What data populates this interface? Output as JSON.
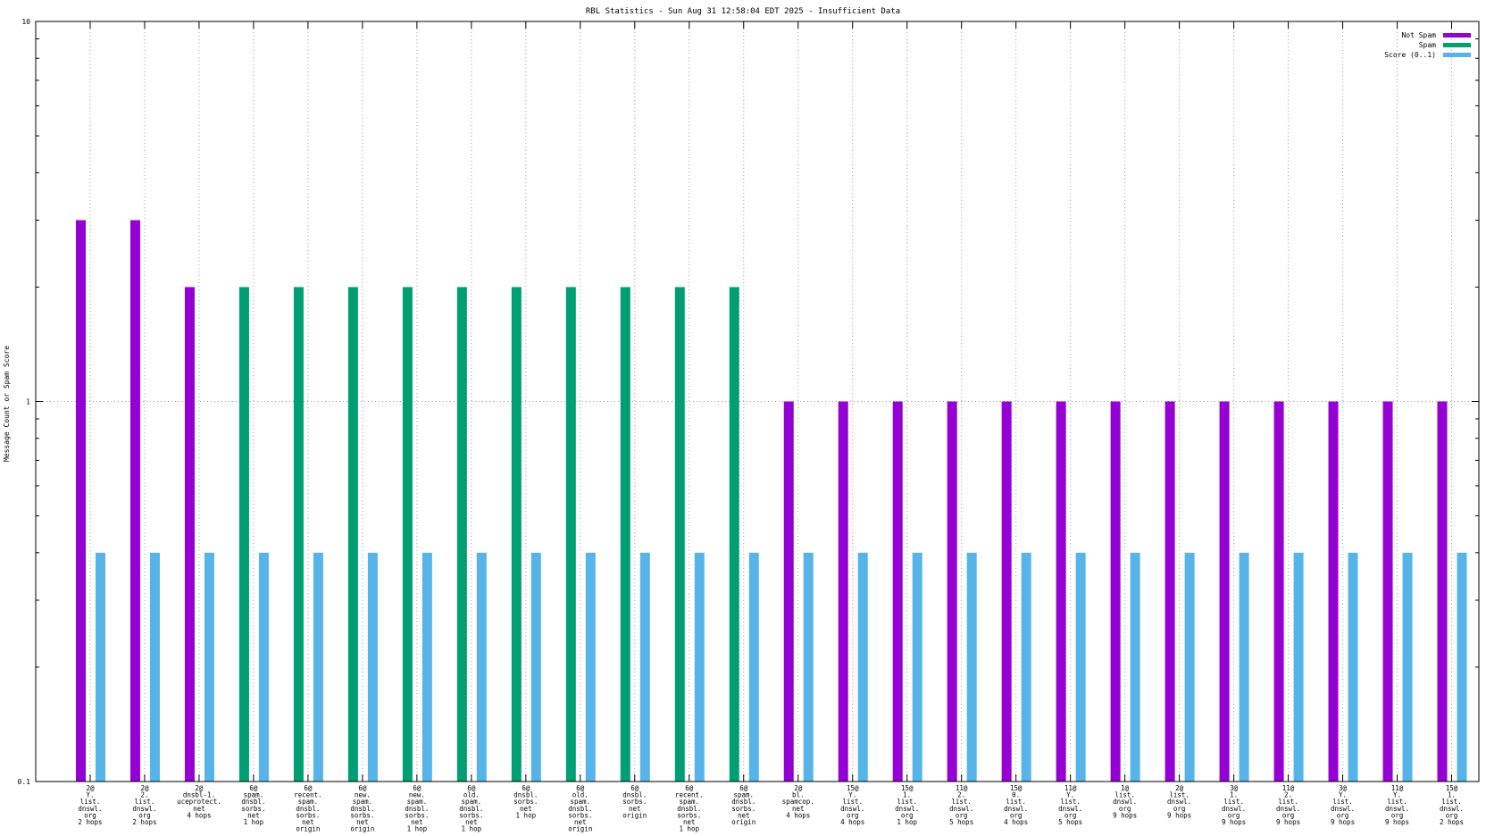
{
  "chart_data": {
    "type": "bar",
    "title": "RBL Statistics - Sun Aug 31 12:58:04 EDT 2025 - Insufficient Data",
    "xlabel": "",
    "ylabel": "Message Count or Spam Score",
    "yscale": "log",
    "ylim": [
      0.1,
      10
    ],
    "yticks": [
      "0.1",
      "1",
      "10"
    ],
    "grid": true,
    "legend_position": "top-right",
    "categories": [
      [
        "2@",
        "Y.",
        "list.",
        "dnswl.",
        "org",
        "2 hops"
      ],
      [
        "2@",
        "2.",
        "list.",
        "dnswl.",
        "org",
        "2 hops"
      ],
      [
        "2@",
        "dnsbl-1.",
        "uceprotect.",
        "net",
        "4 hops"
      ],
      [
        "6@",
        "spam.",
        "dnsbl.",
        "sorbs.",
        "net",
        "1 hop"
      ],
      [
        "6@",
        "recent.",
        "spam.",
        "dnsbl.",
        "sorbs.",
        "net",
        "origin"
      ],
      [
        "6@",
        "new.",
        "spam.",
        "dnsbl.",
        "sorbs.",
        "net",
        "origin"
      ],
      [
        "6@",
        "new.",
        "spam.",
        "dnsbl.",
        "sorbs.",
        "net",
        "1 hop"
      ],
      [
        "6@",
        "old.",
        "spam.",
        "dnsbl.",
        "sorbs.",
        "net",
        "1 hop"
      ],
      [
        "6@",
        "dnsbl.",
        "sorbs.",
        "net",
        "1 hop"
      ],
      [
        "6@",
        "old.",
        "spam.",
        "dnsbl.",
        "sorbs.",
        "net",
        "origin"
      ],
      [
        "6@",
        "dnsbl.",
        "sorbs.",
        "net",
        "origin"
      ],
      [
        "6@",
        "recent.",
        "spam.",
        "dnsbl.",
        "sorbs.",
        "net",
        "1 hop"
      ],
      [
        "6@",
        "spam.",
        "dnsbl.",
        "sorbs.",
        "net",
        "origin"
      ],
      [
        "2@",
        "bl.",
        "spamcop.",
        "net",
        "4 hops"
      ],
      [
        "15@",
        "Y.",
        "list.",
        "dnswl.",
        "org",
        "4 hops"
      ],
      [
        "15@",
        "1.",
        "list.",
        "dnswl.",
        "org",
        "1 hop"
      ],
      [
        "11@",
        "2.",
        "list.",
        "dnswl.",
        "org",
        "5 hops"
      ],
      [
        "15@",
        "0.",
        "list.",
        "dnswl.",
        "org",
        "4 hops"
      ],
      [
        "11@",
        "Y.",
        "list.",
        "dnswl.",
        "org",
        "5 hops"
      ],
      [
        "1@",
        "list.",
        "dnswl.",
        "org",
        "9 hops"
      ],
      [
        "2@",
        "list.",
        "dnswl.",
        "org",
        "9 hops"
      ],
      [
        "3@",
        "1.",
        "list.",
        "dnswl.",
        "org",
        "9 hops"
      ],
      [
        "11@",
        "2.",
        "list.",
        "dnswl.",
        "org",
        "9 hops"
      ],
      [
        "3@",
        "Y.",
        "list.",
        "dnswl.",
        "org",
        "9 hops"
      ],
      [
        "11@",
        "Y.",
        "list.",
        "dnswl.",
        "org",
        "9 hops"
      ],
      [
        "15@",
        "1.",
        "list.",
        "dnswl.",
        "org",
        "2 hops"
      ]
    ],
    "series": [
      {
        "name": "Not Spam",
        "color": "#9400d3",
        "values": [
          3,
          3,
          2,
          0,
          0,
          0,
          0,
          0,
          0,
          0,
          0,
          0,
          0,
          1,
          1,
          1,
          1,
          1,
          1,
          1,
          1,
          1,
          1,
          1,
          1,
          1
        ]
      },
      {
        "name": "Spam",
        "color": "#009e73",
        "values": [
          0,
          0,
          0,
          2,
          2,
          2,
          2,
          2,
          2,
          2,
          2,
          2,
          2,
          0,
          0,
          0,
          0,
          0,
          0,
          0,
          0,
          0,
          0,
          0,
          0,
          0
        ]
      },
      {
        "name": "Score (0..1)",
        "color": "#56b4e9",
        "values": [
          0.4,
          0.4,
          0.4,
          0.4,
          0.4,
          0.4,
          0.4,
          0.4,
          0.4,
          0.4,
          0.4,
          0.4,
          0.4,
          0.4,
          0.4,
          0.4,
          0.4,
          0.4,
          0.4,
          0.4,
          0.4,
          0.4,
          0.4,
          0.4,
          0.4,
          0.4
        ]
      }
    ]
  }
}
